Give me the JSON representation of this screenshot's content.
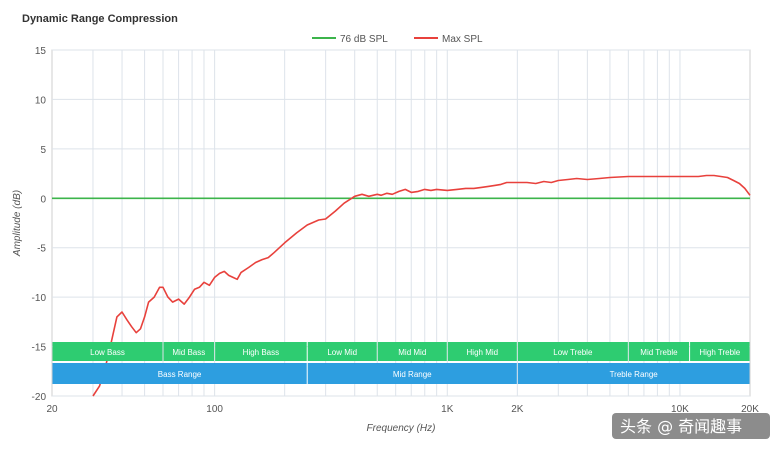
{
  "chart_data": {
    "type": "line",
    "title": "Dynamic Range Compression",
    "xlabel": "Frequency (Hz)",
    "ylabel": "Amplitude (dB)",
    "xscale": "log",
    "xlim": [
      20,
      20000
    ],
    "ylim": [
      -20,
      15
    ],
    "x_ticks": [
      {
        "value": 20,
        "label": "20"
      },
      {
        "value": 100,
        "label": "100"
      },
      {
        "value": 1000,
        "label": "1K"
      },
      {
        "value": 2000,
        "label": "2K"
      },
      {
        "value": 10000,
        "label": "10K"
      },
      {
        "value": 20000,
        "label": "20K"
      }
    ],
    "y_ticks": [
      15,
      10,
      5,
      0,
      -5,
      -10,
      -15,
      -20
    ],
    "grid": true,
    "legend_position": "top-center",
    "series": [
      {
        "name": "76 dB SPL",
        "color": "#3cb44b",
        "x": [
          20,
          20000
        ],
        "y": [
          0,
          0
        ]
      },
      {
        "name": "Max SPL",
        "color": "#e8413c",
        "x": [
          30,
          32,
          34,
          36,
          38,
          40,
          42,
          44,
          46,
          48,
          50,
          52,
          55,
          58,
          60,
          63,
          66,
          70,
          74,
          78,
          82,
          86,
          90,
          95,
          100,
          105,
          110,
          115,
          120,
          125,
          130,
          140,
          150,
          160,
          170,
          180,
          200,
          225,
          250,
          280,
          300,
          330,
          360,
          400,
          430,
          460,
          500,
          520,
          550,
          580,
          620,
          660,
          700,
          750,
          800,
          850,
          900,
          1000,
          1100,
          1200,
          1300,
          1400,
          1500,
          1600,
          1700,
          1800,
          2000,
          2200,
          2400,
          2600,
          2800,
          3000,
          3300,
          3600,
          4000,
          4500,
          5000,
          6000,
          7000,
          8000,
          9000,
          10000,
          11000,
          12000,
          13000,
          14000,
          15000,
          16000,
          17000,
          18000,
          19000,
          20000
        ],
        "y": [
          -20,
          -19,
          -17,
          -14.5,
          -12,
          -11.5,
          -12.3,
          -13,
          -13.6,
          -13.2,
          -12,
          -10.5,
          -10,
          -9,
          -9,
          -10,
          -10.5,
          -10.2,
          -10.7,
          -10,
          -9.2,
          -9,
          -8.5,
          -8.8,
          -8,
          -7.6,
          -7.4,
          -7.8,
          -8,
          -8.2,
          -7.5,
          -7,
          -6.5,
          -6.2,
          -6,
          -5.5,
          -4.5,
          -3.5,
          -2.7,
          -2.2,
          -2.1,
          -1.3,
          -0.5,
          0.2,
          0.4,
          0.2,
          0.4,
          0.3,
          0.5,
          0.4,
          0.7,
          0.9,
          0.6,
          0.7,
          0.9,
          0.8,
          0.9,
          0.8,
          0.9,
          1,
          1,
          1.1,
          1.2,
          1.3,
          1.4,
          1.6,
          1.6,
          1.6,
          1.5,
          1.7,
          1.6,
          1.8,
          1.9,
          2,
          1.9,
          2,
          2.1,
          2.2,
          2.2,
          2.2,
          2.2,
          2.2,
          2.2,
          2.2,
          2.3,
          2.3,
          2.2,
          2.1,
          1.8,
          1.5,
          1,
          0.3
        ]
      }
    ],
    "range_bands": {
      "sub_ranges": [
        {
          "label": "Low Bass",
          "from": 20,
          "to": 60
        },
        {
          "label": "Mid Bass",
          "from": 60,
          "to": 100
        },
        {
          "label": "High Bass",
          "from": 100,
          "to": 250
        },
        {
          "label": "Low Mid",
          "from": 250,
          "to": 500
        },
        {
          "label": "Mid Mid",
          "from": 500,
          "to": 1000
        },
        {
          "label": "High Mid",
          "from": 1000,
          "to": 2000
        },
        {
          "label": "Low Treble",
          "from": 2000,
          "to": 6000
        },
        {
          "label": "Mid Treble",
          "from": 6000,
          "to": 11000
        },
        {
          "label": "High Treble",
          "from": 11000,
          "to": 20000
        }
      ],
      "main_ranges": [
        {
          "label": "Bass Range",
          "from": 20,
          "to": 250
        },
        {
          "label": "Mid Range",
          "from": 250,
          "to": 2000
        },
        {
          "label": "Treble Range",
          "from": 2000,
          "to": 20000
        }
      ],
      "sub_color": "#2ecc71",
      "main_color": "#2d9ee0"
    }
  },
  "watermark": "头条 @ 奇闻趣事"
}
